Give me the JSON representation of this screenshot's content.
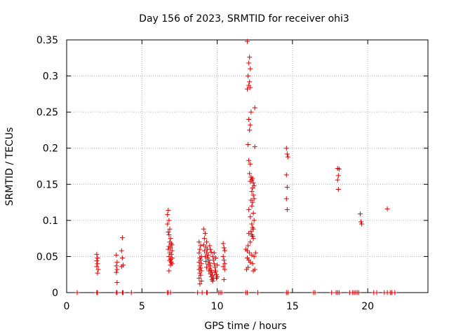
{
  "chart_data": {
    "type": "scatter",
    "title": "Day 156 of 2023, SRMTID for receiver ohi3",
    "xlabel": "GPS time / hours",
    "ylabel": "SRMTID / TECUs",
    "xlim": [
      0,
      24
    ],
    "ylim": [
      0,
      0.35
    ],
    "x_ticks": [
      {
        "value": 0,
        "label": "0"
      },
      {
        "value": 5,
        "label": "5"
      },
      {
        "value": 10,
        "label": "10"
      },
      {
        "value": 15,
        "label": "15"
      },
      {
        "value": 20,
        "label": "20"
      }
    ],
    "y_ticks": [
      {
        "value": 0,
        "label": "0"
      },
      {
        "value": 0.05,
        "label": "0.05"
      },
      {
        "value": 0.1,
        "label": "0.1"
      },
      {
        "value": 0.15,
        "label": "0.15"
      },
      {
        "value": 0.2,
        "label": "0.2"
      },
      {
        "value": 0.25,
        "label": "0.25"
      },
      {
        "value": 0.3,
        "label": "0.3"
      },
      {
        "value": 0.35,
        "label": "0.35"
      }
    ],
    "grid": true,
    "marker": "+",
    "series": [
      {
        "name": "SRMTID",
        "color": "#dd0000",
        "points": [
          [
            0.7,
            0
          ],
          [
            2.0,
            0
          ],
          [
            2.05,
            0
          ],
          [
            3.3,
            0
          ],
          [
            3.35,
            0
          ],
          [
            3.7,
            0
          ],
          [
            3.75,
            0
          ],
          [
            4.3,
            0
          ],
          [
            6.7,
            0
          ],
          [
            6.75,
            0
          ],
          [
            6.9,
            0
          ],
          [
            8.7,
            0
          ],
          [
            9.0,
            0
          ],
          [
            9.3,
            0
          ],
          [
            9.35,
            0
          ],
          [
            10.1,
            0
          ],
          [
            10.2,
            0
          ],
          [
            10.3,
            0
          ],
          [
            11.9,
            0
          ],
          [
            12.0,
            0
          ],
          [
            12.7,
            0
          ],
          [
            14.6,
            0
          ],
          [
            14.7,
            0
          ],
          [
            16.4,
            0
          ],
          [
            16.5,
            0
          ],
          [
            17.6,
            0
          ],
          [
            17.9,
            0
          ],
          [
            18.0,
            0
          ],
          [
            18.1,
            0
          ],
          [
            18.8,
            0
          ],
          [
            19.0,
            0
          ],
          [
            19.1,
            0
          ],
          [
            19.2,
            0
          ],
          [
            19.3,
            0
          ],
          [
            19.4,
            0
          ],
          [
            20.4,
            0
          ],
          [
            20.6,
            0
          ],
          [
            21.1,
            0
          ],
          [
            21.3,
            0
          ],
          [
            21.5,
            0
          ],
          [
            21.6,
            0
          ],
          [
            21.8,
            0
          ],
          [
            2.0,
            0.053
          ],
          [
            2.05,
            0.048
          ],
          [
            2.0,
            0.044
          ],
          [
            2.05,
            0.04
          ],
          [
            2.0,
            0.036
          ],
          [
            2.1,
            0.032
          ],
          [
            2.05,
            0.027
          ],
          [
            3.3,
            0.052
          ],
          [
            3.35,
            0.042
          ],
          [
            3.3,
            0.037
          ],
          [
            3.35,
            0.032
          ],
          [
            3.3,
            0.028
          ],
          [
            3.35,
            0.014
          ],
          [
            3.7,
            0.076
          ],
          [
            3.65,
            0.058
          ],
          [
            3.7,
            0.048
          ],
          [
            3.75,
            0.038
          ],
          [
            3.65,
            0.036
          ],
          [
            6.7,
            0.108
          ],
          [
            6.75,
            0.114
          ],
          [
            6.8,
            0.1
          ],
          [
            6.7,
            0.095
          ],
          [
            6.85,
            0.088
          ],
          [
            6.75,
            0.084
          ],
          [
            6.8,
            0.08
          ],
          [
            6.9,
            0.075
          ],
          [
            6.85,
            0.07
          ],
          [
            6.95,
            0.068
          ],
          [
            7.0,
            0.066
          ],
          [
            6.8,
            0.064
          ],
          [
            6.9,
            0.062
          ],
          [
            6.75,
            0.06
          ],
          [
            7.0,
            0.058
          ],
          [
            6.85,
            0.055
          ],
          [
            6.95,
            0.053
          ],
          [
            6.8,
            0.05
          ],
          [
            7.0,
            0.048
          ],
          [
            6.9,
            0.046
          ],
          [
            6.85,
            0.044
          ],
          [
            6.95,
            0.042
          ],
          [
            7.0,
            0.04
          ],
          [
            6.9,
            0.038
          ],
          [
            6.8,
            0.03
          ],
          [
            8.8,
            0.07
          ],
          [
            8.9,
            0.065
          ],
          [
            8.85,
            0.06
          ],
          [
            8.8,
            0.055
          ],
          [
            8.95,
            0.05
          ],
          [
            8.85,
            0.048
          ],
          [
            8.9,
            0.045
          ],
          [
            8.8,
            0.042
          ],
          [
            8.95,
            0.04
          ],
          [
            8.85,
            0.037
          ],
          [
            8.9,
            0.034
          ],
          [
            8.8,
            0.032
          ],
          [
            8.95,
            0.03
          ],
          [
            8.85,
            0.027
          ],
          [
            8.9,
            0.024
          ],
          [
            8.8,
            0.02
          ],
          [
            8.95,
            0.016
          ],
          [
            8.85,
            0.012
          ],
          [
            9.1,
            0.088
          ],
          [
            9.2,
            0.082
          ],
          [
            9.15,
            0.075
          ],
          [
            9.3,
            0.07
          ],
          [
            9.1,
            0.066
          ],
          [
            9.25,
            0.063
          ],
          [
            9.35,
            0.06
          ],
          [
            9.15,
            0.058
          ],
          [
            9.3,
            0.055
          ],
          [
            9.4,
            0.052
          ],
          [
            9.2,
            0.05
          ],
          [
            9.35,
            0.048
          ],
          [
            9.45,
            0.045
          ],
          [
            9.25,
            0.043
          ],
          [
            9.5,
            0.041
          ],
          [
            9.4,
            0.039
          ],
          [
            9.55,
            0.037
          ],
          [
            9.3,
            0.035
          ],
          [
            9.5,
            0.033
          ],
          [
            9.6,
            0.031
          ],
          [
            9.45,
            0.03
          ],
          [
            9.65,
            0.028
          ],
          [
            9.55,
            0.026
          ],
          [
            9.7,
            0.024
          ],
          [
            9.6,
            0.022
          ],
          [
            9.75,
            0.02
          ],
          [
            9.65,
            0.018
          ],
          [
            9.7,
            0.016
          ],
          [
            9.5,
            0.065
          ],
          [
            9.55,
            0.06
          ],
          [
            9.6,
            0.056
          ],
          [
            9.7,
            0.05
          ],
          [
            9.75,
            0.045
          ],
          [
            9.8,
            0.04
          ],
          [
            9.85,
            0.035
          ],
          [
            9.9,
            0.03
          ],
          [
            9.95,
            0.025
          ],
          [
            10.0,
            0.022
          ],
          [
            9.8,
            0.055
          ],
          [
            9.9,
            0.048
          ],
          [
            10.0,
            0.038
          ],
          [
            9.85,
            0.028
          ],
          [
            9.95,
            0.02
          ],
          [
            10.4,
            0.068
          ],
          [
            10.45,
            0.062
          ],
          [
            10.5,
            0.058
          ],
          [
            10.4,
            0.05
          ],
          [
            10.45,
            0.045
          ],
          [
            10.5,
            0.04
          ],
          [
            10.4,
            0.036
          ],
          [
            10.5,
            0.032
          ],
          [
            10.45,
            0.018
          ],
          [
            12.0,
            0.348
          ],
          [
            12.15,
            0.326
          ],
          [
            12.1,
            0.318
          ],
          [
            12.2,
            0.31
          ],
          [
            12.05,
            0.3
          ],
          [
            12.15,
            0.292
          ],
          [
            12.1,
            0.287
          ],
          [
            12.2,
            0.284
          ],
          [
            12.0,
            0.282
          ],
          [
            12.5,
            0.256
          ],
          [
            12.25,
            0.25
          ],
          [
            12.1,
            0.24
          ],
          [
            12.2,
            0.232
          ],
          [
            12.15,
            0.225
          ],
          [
            12.05,
            0.205
          ],
          [
            12.5,
            0.202
          ],
          [
            12.1,
            0.183
          ],
          [
            12.2,
            0.178
          ],
          [
            12.15,
            0.165
          ],
          [
            12.25,
            0.16
          ],
          [
            12.35,
            0.158
          ],
          [
            12.3,
            0.156
          ],
          [
            12.2,
            0.154
          ],
          [
            12.4,
            0.152
          ],
          [
            12.45,
            0.148
          ],
          [
            12.35,
            0.145
          ],
          [
            12.3,
            0.14
          ],
          [
            12.4,
            0.135
          ],
          [
            12.45,
            0.13
          ],
          [
            12.25,
            0.128
          ],
          [
            12.35,
            0.125
          ],
          [
            12.3,
            0.12
          ],
          [
            12.1,
            0.115
          ],
          [
            12.4,
            0.11
          ],
          [
            12.2,
            0.105
          ],
          [
            12.45,
            0.1
          ],
          [
            12.3,
            0.095
          ],
          [
            12.35,
            0.09
          ],
          [
            12.4,
            0.088
          ],
          [
            12.25,
            0.085
          ],
          [
            12.1,
            0.082
          ],
          [
            12.3,
            0.08
          ],
          [
            12.35,
            0.078
          ],
          [
            12.4,
            0.075
          ],
          [
            12.2,
            0.07
          ],
          [
            12.05,
            0.065
          ],
          [
            11.9,
            0.06
          ],
          [
            12.0,
            0.058
          ],
          [
            12.15,
            0.055
          ],
          [
            12.3,
            0.052
          ],
          [
            12.45,
            0.05
          ],
          [
            12.0,
            0.048
          ],
          [
            12.1,
            0.045
          ],
          [
            12.2,
            0.042
          ],
          [
            12.35,
            0.04
          ],
          [
            12.05,
            0.035
          ],
          [
            11.95,
            0.032
          ],
          [
            12.4,
            0.03
          ],
          [
            12.5,
            0.032
          ],
          [
            12.55,
            0.055
          ],
          [
            14.6,
            0.2
          ],
          [
            14.65,
            0.192
          ],
          [
            14.7,
            0.188
          ],
          [
            14.6,
            0.163
          ],
          [
            14.65,
            0.146
          ],
          [
            14.6,
            0.13
          ],
          [
            14.65,
            0.115
          ],
          [
            18.0,
            0.172
          ],
          [
            18.1,
            0.171
          ],
          [
            18.05,
            0.162
          ],
          [
            18.0,
            0.156
          ],
          [
            18.05,
            0.143
          ],
          [
            19.5,
            0.109
          ],
          [
            19.55,
            0.098
          ],
          [
            19.6,
            0.095
          ],
          [
            21.3,
            0.116
          ]
        ]
      }
    ]
  }
}
